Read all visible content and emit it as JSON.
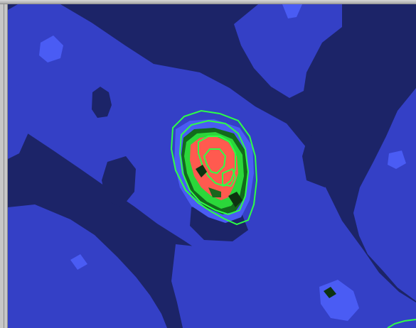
{
  "window": {
    "title": ""
  },
  "view": {
    "kind": "map-canvas",
    "colors": {
      "background": "#1c2468",
      "dark_blue": "#232b79",
      "mid_blue": "#3440c6",
      "light_blue": "#4a5cf4",
      "green_contour": "#2dff46",
      "core_red": "#ff5a4f",
      "dark_green": "#126a1c"
    }
  }
}
